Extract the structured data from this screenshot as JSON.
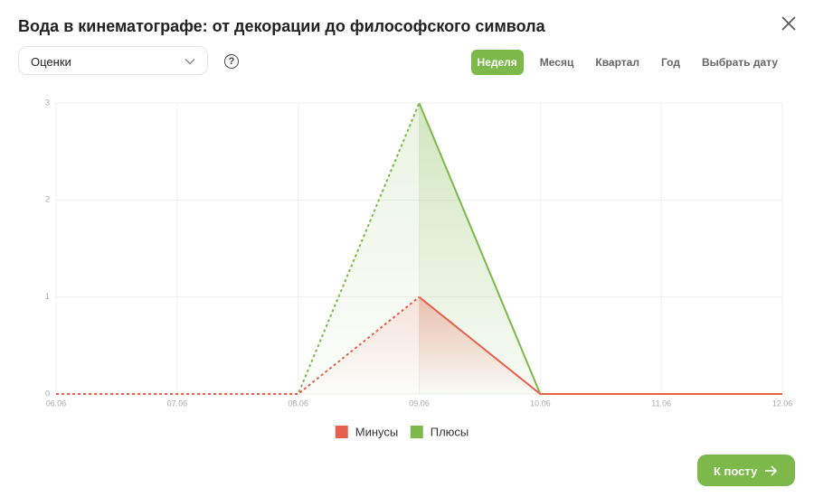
{
  "header": {
    "title": "Вода в кинематографе: от декорации до философского символа"
  },
  "controls": {
    "dropdown": "Оценки",
    "help": "?",
    "tabs": [
      "Неделя",
      "Месяц",
      "Квартал",
      "Год",
      "Выбрать дату"
    ],
    "active_tab": 0
  },
  "chart_data": {
    "type": "line",
    "categories": [
      "06.06",
      "07.06",
      "08.06",
      "09.06",
      "10.06",
      "11.06",
      "12.06"
    ],
    "series": [
      {
        "name": "Минусы",
        "color": "#e8604c",
        "values": [
          0,
          0,
          0,
          1,
          0,
          0,
          0
        ]
      },
      {
        "name": "Плюсы",
        "color": "#7cb84a",
        "values": [
          0,
          0,
          0,
          3,
          0,
          0,
          0
        ]
      }
    ],
    "ylim": [
      0,
      3
    ],
    "yticks": [
      0,
      1,
      2,
      3
    ],
    "grid": true,
    "legend": "bottom"
  },
  "footer": {
    "button": "К посту"
  }
}
